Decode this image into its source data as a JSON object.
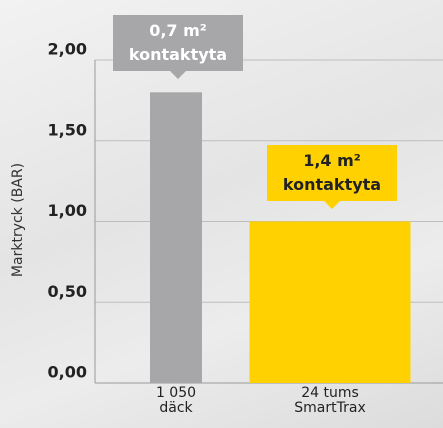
{
  "chart_data": {
    "type": "bar",
    "y_label": "Marktryck (BAR)",
    "categories": [
      "1 050\ndäck",
      "24 tums\nSmartTrax"
    ],
    "values": [
      1.8,
      1.0
    ],
    "colors": [
      "#a7a7a9",
      "#ffd100"
    ],
    "ylim": [
      0,
      2
    ],
    "yticks": [
      {
        "value": 0,
        "label": "0,00"
      },
      {
        "value": 0.5,
        "label": "0,50"
      },
      {
        "value": 1,
        "label": "1,00"
      },
      {
        "value": 1.5,
        "label": "1,50"
      },
      {
        "value": 2,
        "label": "2,00"
      }
    ],
    "grid": true,
    "annotations": [
      "0,7 m²\nkontaktyta",
      "1,4 m²\nkontaktyta"
    ]
  }
}
